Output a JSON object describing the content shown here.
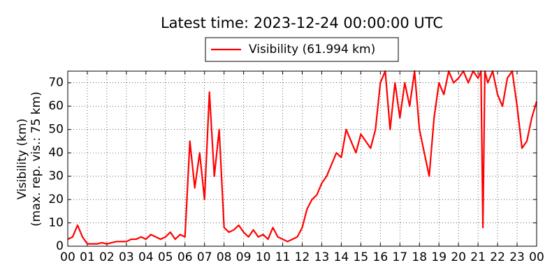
{
  "chart_data": {
    "type": "line",
    "title": "Latest time: 2023-12-24 00:00:00 UTC",
    "y_label": [
      "Visibility (km)",
      "(max. rep. vis.: 75 km)"
    ],
    "x": [
      0,
      0.25,
      0.5,
      0.75,
      1,
      1.25,
      1.5,
      1.75,
      2,
      2.25,
      2.5,
      2.75,
      3,
      3.25,
      3.5,
      3.75,
      4,
      4.25,
      4.5,
      4.75,
      5,
      5.25,
      5.5,
      5.75,
      6,
      6.25,
      6.5,
      6.75,
      7,
      7.25,
      7.5,
      7.75,
      8,
      8.25,
      8.5,
      8.75,
      9,
      9.25,
      9.5,
      9.75,
      10,
      10.25,
      10.5,
      10.75,
      11,
      11.25,
      11.5,
      11.75,
      12,
      12.25,
      12.5,
      12.75,
      13,
      13.25,
      13.5,
      13.75,
      14,
      14.25,
      14.5,
      14.75,
      15,
      15.25,
      15.5,
      15.75,
      16,
      16.25,
      16.5,
      16.75,
      17,
      17.25,
      17.5,
      17.75,
      18,
      18.25,
      18.5,
      18.75,
      19,
      19.25,
      19.5,
      19.75,
      20,
      20.25,
      20.5,
      20.75,
      21,
      21.15,
      21.25,
      21.35,
      21.5,
      21.75,
      22,
      22.25,
      22.5,
      22.75,
      23,
      23.25,
      23.5,
      23.75,
      24
    ],
    "series": [
      {
        "name": "Visibility (61.994 km)",
        "color": "#ff0000",
        "values": [
          3,
          4,
          9,
          4,
          1,
          1,
          1,
          1.5,
          1,
          1.5,
          2,
          2,
          2,
          3,
          3,
          4,
          3,
          5,
          4,
          3,
          4,
          6,
          3,
          5,
          4,
          45,
          25,
          40,
          20,
          66,
          30,
          50,
          8,
          6,
          7,
          9,
          6,
          4,
          7,
          4,
          5,
          3,
          8,
          4,
          3,
          2,
          3,
          4,
          8,
          16,
          20,
          22,
          27,
          30,
          35,
          40,
          38,
          50,
          45,
          40,
          48,
          45,
          42,
          50,
          70,
          75,
          50,
          70,
          55,
          70,
          60,
          75,
          50,
          40,
          30,
          55,
          70,
          65,
          75,
          70,
          72,
          75,
          70,
          75,
          72,
          75,
          8,
          75,
          70,
          75,
          65,
          60,
          72,
          75,
          60,
          42,
          45,
          55,
          62
        ]
      }
    ],
    "xlim": [
      0,
      24
    ],
    "ylim": [
      0,
      75
    ],
    "xticks": [
      {
        "value": 0,
        "label": "00"
      },
      {
        "value": 1,
        "label": "01"
      },
      {
        "value": 2,
        "label": "02"
      },
      {
        "value": 3,
        "label": "03"
      },
      {
        "value": 4,
        "label": "04"
      },
      {
        "value": 5,
        "label": "05"
      },
      {
        "value": 6,
        "label": "06"
      },
      {
        "value": 7,
        "label": "07"
      },
      {
        "value": 8,
        "label": "08"
      },
      {
        "value": 9,
        "label": "09"
      },
      {
        "value": 10,
        "label": "10"
      },
      {
        "value": 11,
        "label": "11"
      },
      {
        "value": 12,
        "label": "12"
      },
      {
        "value": 13,
        "label": "13"
      },
      {
        "value": 14,
        "label": "14"
      },
      {
        "value": 15,
        "label": "15"
      },
      {
        "value": 16,
        "label": "16"
      },
      {
        "value": 17,
        "label": "17"
      },
      {
        "value": 18,
        "label": "18"
      },
      {
        "value": 19,
        "label": "19"
      },
      {
        "value": 20,
        "label": "20"
      },
      {
        "value": 21,
        "label": "21"
      },
      {
        "value": 22,
        "label": "22"
      },
      {
        "value": 23,
        "label": "23"
      },
      {
        "value": 24,
        "label": "00"
      }
    ],
    "yticks": [
      0,
      10,
      20,
      30,
      40,
      50,
      60,
      70
    ],
    "grid": true,
    "legend": "top"
  }
}
